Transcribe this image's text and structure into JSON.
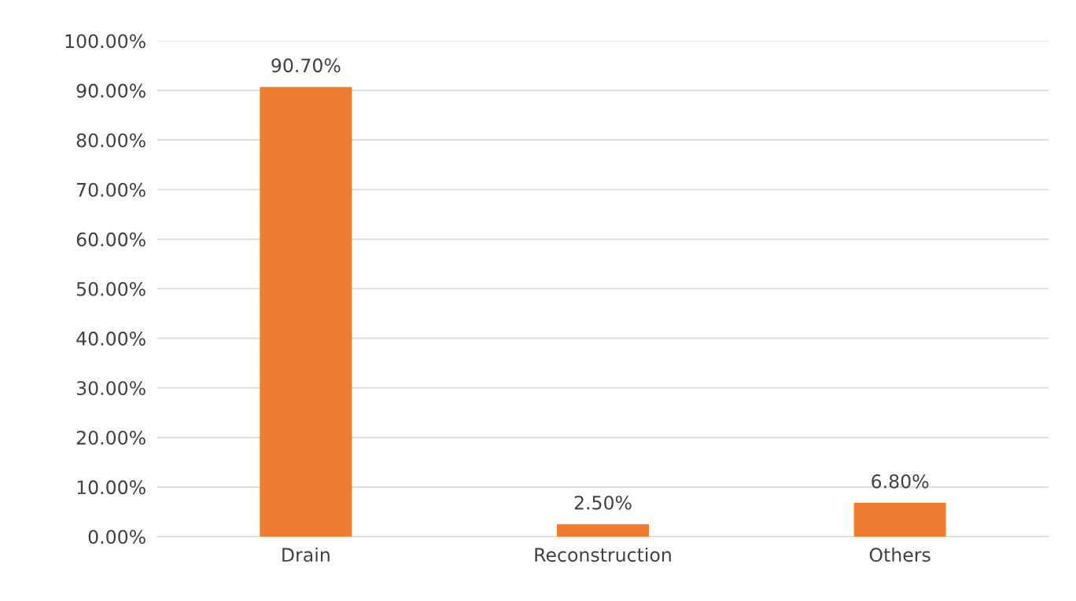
{
  "chart_data": {
    "type": "bar",
    "categories": [
      "Drain",
      "Reconstruction",
      "Others"
    ],
    "values": [
      90.7,
      2.5,
      6.8
    ],
    "value_labels": [
      "90.70%",
      "2.50%",
      "6.80%"
    ],
    "color": "#ed7d31",
    "ylim": [
      0,
      100
    ],
    "yticks": [
      {
        "value": 0,
        "label": "0.00%"
      },
      {
        "value": 10,
        "label": "10.00%"
      },
      {
        "value": 20,
        "label": "20.00%"
      },
      {
        "value": 30,
        "label": "30.00%"
      },
      {
        "value": 40,
        "label": "40.00%"
      },
      {
        "value": 50,
        "label": "50.00%"
      },
      {
        "value": 60,
        "label": "60.00%"
      },
      {
        "value": 70,
        "label": "70.00%"
      },
      {
        "value": 80,
        "label": "80.00%"
      },
      {
        "value": 90,
        "label": "90.00%"
      },
      {
        "value": 100,
        "label": "100.00%"
      }
    ],
    "grid": "y",
    "legend": false
  }
}
